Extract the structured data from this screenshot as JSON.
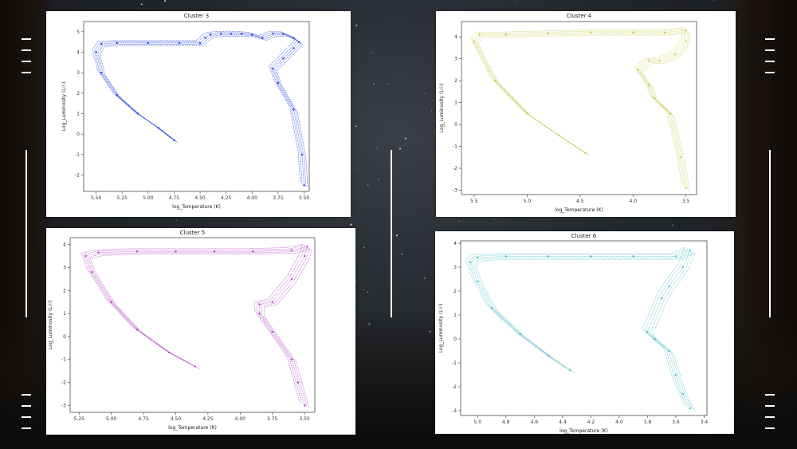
{
  "colors": {
    "cluster3": "#1f3fe0",
    "cluster4": "#c8c44a",
    "cluster5": "#b03cc4",
    "cluster6": "#4bbcc6"
  },
  "chart_data": [
    {
      "type": "scatter",
      "title": "Cluster 3",
      "xlabel": "log_Temperature (K)",
      "ylabel": "Log_Luminosity (L☉)",
      "xlim": [
        5.62,
        3.45
      ],
      "ylim": [
        -2.8,
        5.5
      ],
      "xticks": [
        "5.50",
        "5.25",
        "5.00",
        "4.75",
        "4.50",
        "4.25",
        "4.00",
        "3.75",
        "3.50"
      ],
      "xtick_values": [
        5.5,
        5.25,
        5.0,
        4.75,
        4.5,
        4.25,
        4.0,
        3.75,
        3.5
      ],
      "yticks": [
        "5",
        "4",
        "3",
        "2",
        "1",
        "0",
        "-1",
        "-2"
      ],
      "ytick_values": [
        5,
        4,
        3,
        2,
        1,
        0,
        -1,
        -2
      ],
      "x": [
        4.75,
        4.9,
        5.1,
        5.3,
        5.45,
        5.5,
        5.45,
        5.3,
        5.0,
        4.7,
        4.5,
        4.45,
        4.4,
        4.3,
        4.2,
        4.1,
        4.0,
        3.9,
        3.8,
        3.7,
        3.6,
        3.55,
        3.6,
        3.7,
        3.8,
        3.75,
        3.6,
        3.52,
        3.5
      ],
      "y": [
        -0.3,
        0.3,
        1.0,
        1.9,
        3.0,
        4.0,
        4.4,
        4.45,
        4.45,
        4.45,
        4.45,
        4.7,
        4.85,
        4.9,
        4.9,
        4.9,
        4.85,
        4.7,
        4.9,
        4.9,
        4.7,
        4.5,
        4.2,
        3.7,
        3.2,
        2.5,
        1.2,
        -1.0,
        -2.5
      ]
    },
    {
      "type": "scatter",
      "title": "Cluster 4",
      "xlabel": "log_Temperature (K)",
      "ylabel": "Log_Luminosity (L☉)",
      "xlim": [
        5.62,
        3.4
      ],
      "ylim": [
        -3.2,
        4.7
      ],
      "xticks": [
        "5.5",
        "5.0",
        "4.5",
        "4.0",
        "3.5"
      ],
      "xtick_values": [
        5.5,
        5.0,
        4.5,
        4.0,
        3.5
      ],
      "yticks": [
        "4",
        "3",
        "2",
        "1",
        "0",
        "-1",
        "-2",
        "-3"
      ],
      "ytick_values": [
        4,
        3,
        2,
        1,
        0,
        -1,
        -2,
        -3
      ],
      "x": [
        4.45,
        4.7,
        5.0,
        5.3,
        5.5,
        5.45,
        5.2,
        4.8,
        4.4,
        4.0,
        3.7,
        3.5,
        3.5,
        3.6,
        3.75,
        3.85,
        3.95,
        3.85,
        3.8,
        3.65,
        3.55,
        3.5
      ],
      "y": [
        -1.3,
        -0.5,
        0.5,
        2.0,
        3.8,
        4.1,
        4.1,
        4.15,
        4.2,
        4.2,
        4.2,
        4.3,
        3.8,
        3.2,
        2.9,
        2.9,
        2.5,
        1.8,
        1.2,
        0.5,
        -1.5,
        -2.9
      ]
    },
    {
      "type": "scatter",
      "title": "Cluster 5",
      "xlabel": "log_Temperature (K)",
      "ylabel": "Log_Luminosity (L☉)",
      "xlim": [
        5.32,
        3.42
      ],
      "ylim": [
        -3.3,
        4.3
      ],
      "xticks": [
        "5.25",
        "5.00",
        "4.75",
        "4.50",
        "4.25",
        "4.00",
        "3.75",
        "3.50"
      ],
      "xtick_values": [
        5.25,
        5.0,
        4.75,
        4.5,
        4.25,
        4.0,
        3.75,
        3.5
      ],
      "yticks": [
        "4",
        "3",
        "2",
        "1",
        "0",
        "-1",
        "-2",
        "-3"
      ],
      "ytick_values": [
        4,
        3,
        2,
        1,
        0,
        -1,
        -2,
        -3
      ],
      "x": [
        4.35,
        4.55,
        4.8,
        5.0,
        5.15,
        5.2,
        5.1,
        4.8,
        4.5,
        4.2,
        3.9,
        3.6,
        3.48,
        3.5,
        3.6,
        3.75,
        3.85,
        3.85,
        3.75,
        3.6,
        3.55,
        3.5
      ],
      "y": [
        -1.3,
        -0.7,
        0.3,
        1.5,
        2.8,
        3.5,
        3.65,
        3.7,
        3.7,
        3.7,
        3.7,
        3.75,
        3.9,
        3.5,
        2.5,
        1.5,
        1.4,
        1.0,
        0.2,
        -1.0,
        -2.0,
        -3.0
      ]
    },
    {
      "type": "scatter",
      "title": "Cluster 6",
      "xlabel": "log_Temperature (K)",
      "ylabel": "Log_Luminosity (L☉)",
      "xlim": [
        5.12,
        3.38
      ],
      "ylim": [
        -3.2,
        4.1
      ],
      "xticks": [
        "5.0",
        "4.8",
        "4.6",
        "4.4",
        "4.2",
        "4.0",
        "3.8",
        "3.6",
        "3.4"
      ],
      "xtick_values": [
        5.0,
        4.8,
        4.6,
        4.4,
        4.2,
        4.0,
        3.8,
        3.6,
        3.4
      ],
      "yticks": [
        "4",
        "3",
        "2",
        "1",
        "0",
        "-1",
        "-2",
        "-3"
      ],
      "ytick_values": [
        4,
        3,
        2,
        1,
        0,
        -1,
        -2,
        -3
      ],
      "x": [
        4.35,
        4.5,
        4.7,
        4.9,
        5.0,
        5.05,
        5.0,
        4.8,
        4.5,
        4.2,
        3.9,
        3.6,
        3.5,
        3.55,
        3.65,
        3.7,
        3.8,
        3.75,
        3.65,
        3.6,
        3.55,
        3.5
      ],
      "y": [
        -1.3,
        -0.7,
        0.2,
        1.3,
        2.4,
        3.2,
        3.4,
        3.45,
        3.45,
        3.45,
        3.45,
        3.45,
        3.7,
        3.0,
        2.2,
        1.7,
        0.3,
        0.0,
        -0.5,
        -1.5,
        -2.3,
        -2.9
      ]
    }
  ]
}
